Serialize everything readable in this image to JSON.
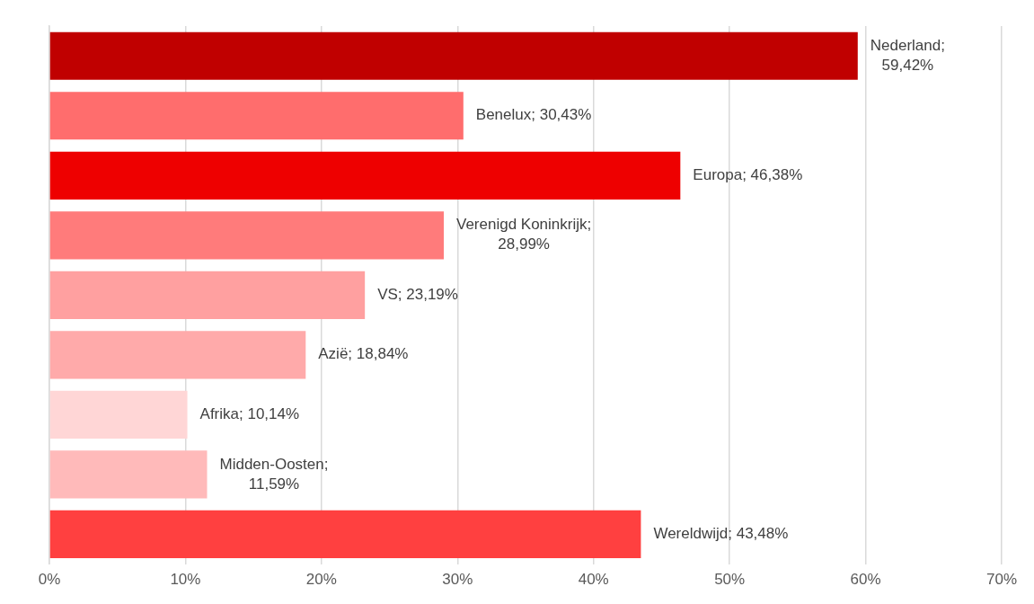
{
  "chart_data": {
    "type": "bar",
    "orientation": "horizontal",
    "categories": [
      null,
      null,
      null,
      null,
      null,
      null,
      null,
      null,
      null
    ],
    "values": [
      59.42,
      30.43,
      46.38,
      28.99,
      23.19,
      18.84,
      10.14,
      11.59,
      43.48
    ],
    "colors": [
      "#c00000",
      "#ff6d6d",
      "#ee0000",
      "#ff7b7b",
      "#ffa0a0",
      "#ffaaaa",
      "#ffd6d6",
      "#ffbaba",
      "#ff4040"
    ],
    "value_labels": [
      "Nederland; 59,42%",
      "Benelux; 30,43%",
      "Europa; 46,38%",
      "Verenigd Koninkrijk; 28,99%",
      "VS; 23,19%",
      "Azië; 18,84%",
      "Afrika; 10,14%",
      "Midden-Oosten; 11,59%",
      "Wereldwijd; 43,48%"
    ],
    "xlim": [
      0,
      70
    ],
    "xticks": [
      {
        "value": 0,
        "label": "0%"
      },
      {
        "value": 10,
        "label": "10%"
      },
      {
        "value": 20,
        "label": "20%"
      },
      {
        "value": 30,
        "label": "30%"
      },
      {
        "value": 40,
        "label": "40%"
      },
      {
        "value": 50,
        "label": "50%"
      },
      {
        "value": 60,
        "label": "60%"
      },
      {
        "value": 70,
        "label": "70%"
      }
    ],
    "grid": "x",
    "tick_labels": "x",
    "legend": false
  }
}
